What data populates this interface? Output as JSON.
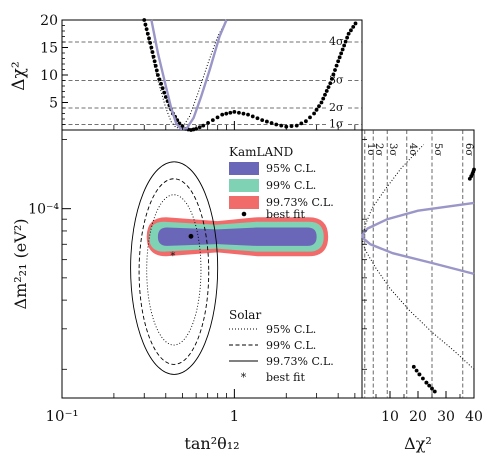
{
  "chart_data": [
    {
      "id": "top-delta-chi2",
      "type": "line",
      "ylabel": "Δχ²",
      "yscale": "linear",
      "ylim": [
        0,
        20
      ],
      "yticks": [
        5,
        10,
        15,
        20
      ],
      "xscale": "log",
      "xlim": [
        0.1,
        5.5
      ],
      "sigma_lines": [
        {
          "label": "1σ",
          "value": 1
        },
        {
          "label": "2σ",
          "value": 4
        },
        {
          "label": "3σ",
          "value": 9
        },
        {
          "label": "4σ",
          "value": 16
        }
      ],
      "series": [
        {
          "ref": "kamland",
          "style": "dots",
          "x": [
            0.3,
            0.33,
            0.36,
            0.4,
            0.44,
            0.48,
            0.52,
            0.56,
            0.6,
            0.66,
            0.75,
            0.85,
            1.0,
            1.2,
            1.45,
            1.75,
            2.0,
            2.3,
            2.6,
            2.9,
            3.2,
            3.6,
            4.0,
            4.6,
            5.2
          ],
          "y": [
            20,
            15,
            10,
            6,
            3,
            1.2,
            0.2,
            0,
            0.2,
            0.8,
            1.8,
            2.8,
            3.3,
            2.8,
            1.8,
            1.0,
            0.6,
            0.8,
            1.6,
            3.0,
            5.0,
            8.5,
            12.5,
            17.5,
            20
          ]
        },
        {
          "ref": "solar",
          "style": "dotted",
          "x": [
            0.3,
            0.33,
            0.36,
            0.4,
            0.43,
            0.46,
            0.5,
            0.55,
            0.62,
            0.7,
            0.8,
            0.9
          ],
          "y": [
            20,
            14,
            9,
            4,
            1.5,
            0.4,
            0.5,
            2.5,
            7,
            12,
            17,
            20
          ]
        },
        {
          "ref": "combined",
          "style": "solid",
          "x": [
            0.33,
            0.36,
            0.4,
            0.43,
            0.46,
            0.49,
            0.53,
            0.58,
            0.64,
            0.72,
            0.82,
            0.9
          ],
          "y": [
            20,
            14,
            8,
            4,
            1.2,
            0.2,
            0.3,
            2.2,
            6,
            11,
            17,
            20
          ]
        }
      ]
    },
    {
      "id": "main-contour",
      "type": "contour",
      "xlabel": "tan²θ₁₂",
      "ylabel": "Δm²₂₁ (eV²)",
      "xscale": "log",
      "xlim": [
        0.1,
        5.5
      ],
      "xticks": [
        {
          "label": "10⁻¹",
          "value": 0.1
        },
        {
          "label": "1",
          "value": 1
        }
      ],
      "yscale": "log",
      "ylim": [
        1.5e-05,
        0.00022
      ],
      "yticks": [
        {
          "label": "10⁻⁴",
          "value": 0.0001
        }
      ],
      "kamland": {
        "best_fit": {
          "x": 0.56,
          "y": 7.58e-05
        },
        "regions": [
          {
            "cl": "99.73% C.L.",
            "color": "#f26b6b",
            "x_range": [
              0.31,
              3.5
            ],
            "y_center": 7.55e-05,
            "half_height": 0.085
          },
          {
            "cl": "99% C.L.",
            "color": "#7fd2b3",
            "x_range": [
              0.32,
              3.3
            ],
            "y_center": 7.55e-05,
            "half_height": 0.065
          },
          {
            "cl": "95% C.L.",
            "color": "#6a66b8",
            "x_range": [
              0.36,
              3.0
            ],
            "y_center": 7.55e-05,
            "half_height": 0.04
          }
        ]
      },
      "solar": {
        "best_fit": {
          "x": 0.44,
          "y": 6.3e-05
        },
        "contours": [
          {
            "cl": "99.73% C.L.",
            "style": "solid",
            "x_range": [
              0.25,
              0.8
            ],
            "y_range": [
              1.9e-05,
              0.00016
            ]
          },
          {
            "cl": "99% C.L.",
            "style": "dashed",
            "x_range": [
              0.28,
              0.71
            ],
            "y_range": [
              2.1e-05,
              0.000135
            ]
          },
          {
            "cl": "95% C.L.",
            "style": "dotted",
            "x_range": [
              0.31,
              0.64
            ],
            "y_range": [
              2.55e-05,
              0.000115
            ]
          }
        ]
      }
    },
    {
      "id": "right-delta-chi2",
      "type": "line",
      "xlabel": "Δχ²",
      "xscale": "linear",
      "xlim": [
        0,
        40
      ],
      "xticks": [
        {
          "label": "10",
          "value": 10
        },
        {
          "label": "20",
          "value": 20
        },
        {
          "label": "30",
          "value": 30
        },
        {
          "label": "40",
          "value": 40
        }
      ],
      "ylim": [
        1.5e-05,
        0.00022
      ],
      "yscale": "log",
      "sigma_lines": [
        {
          "label": "1σ",
          "value": 1
        },
        {
          "label": "2σ",
          "value": 4
        },
        {
          "label": "3σ",
          "value": 9
        },
        {
          "label": "4σ",
          "value": 16
        },
        {
          "label": "5σ",
          "value": 25
        },
        {
          "label": "6σ",
          "value": 36
        }
      ],
      "series": [
        {
          "ref": "kamland",
          "style": "dots",
          "y": [
            1.6e-05,
            1.75e-05,
            1.9e-05,
            2.05e-05,
            0.000135,
            0.000142,
            0.000148
          ],
          "x": [
            26,
            23,
            20.5,
            18.5,
            38.5,
            39.5,
            40.5
          ]
        },
        {
          "ref": "solar",
          "style": "dotted",
          "y": [
            2e-05,
            2.4e-05,
            2.9e-05,
            3.6e-05,
            4.5e-05,
            5.5e-05,
            6.5e-05,
            7e-05,
            7.6e-05,
            8.5e-05,
            0.0001,
            0.00012,
            0.00015,
            0.00019
          ],
          "x": [
            40,
            33,
            25,
            17,
            10,
            5,
            1.5,
            0.4,
            0.2,
            1.2,
            3.5,
            8,
            14,
            22
          ]
        },
        {
          "ref": "combined",
          "style": "solid",
          "y": [
            5.2e-05,
            5.8e-05,
            6.4e-05,
            7e-05,
            7.4e-05,
            7.6e-05,
            7.8e-05,
            8.2e-05,
            9e-05,
            9.8e-05,
            0.000106
          ],
          "x": [
            40,
            25,
            11,
            3,
            0.6,
            0.1,
            0.5,
            2,
            9,
            20,
            40
          ]
        }
      ]
    }
  ],
  "legend": {
    "kamland_title": "KamLAND",
    "kamland_items": [
      "95% C.L.",
      "99% C.L.",
      "99.73% C.L.",
      "best fit"
    ],
    "solar_title": "Solar",
    "solar_items": [
      "95% C.L.",
      "99% C.L.",
      "99.73% C.L.",
      "best fit"
    ]
  },
  "colors": {
    "kamland_95": "#6a66b8",
    "kamland_99": "#7fd2b3",
    "kamland_9973": "#f26b6b",
    "combined_curve": "#9a96c8"
  }
}
